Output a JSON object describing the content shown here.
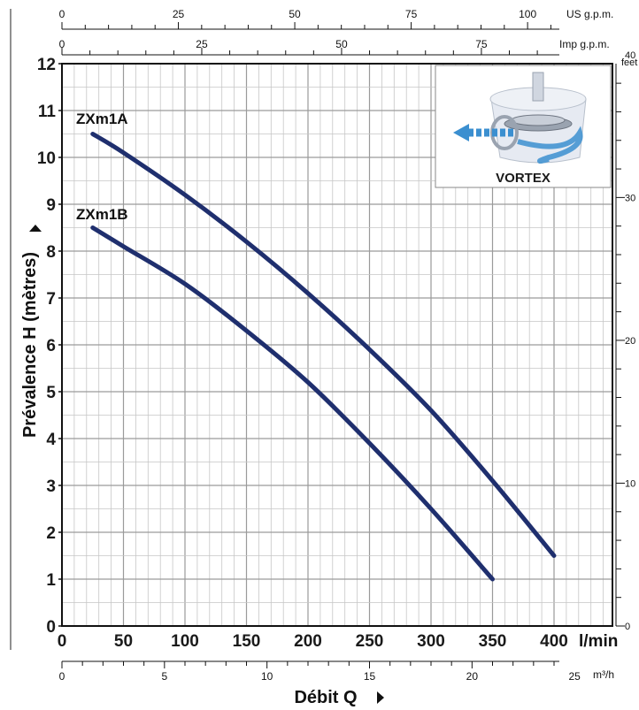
{
  "chart_data": {
    "type": "line",
    "ylabel": "Prévalence H (mètres)",
    "xlabel": "Débit Q",
    "x_unit": "l/min",
    "xlim": [
      0,
      450
    ],
    "ylim": [
      0,
      12
    ],
    "x_ticks": [
      "0",
      "50",
      "100",
      "150",
      "200",
      "250",
      "300",
      "350",
      "400"
    ],
    "y_ticks": [
      "0",
      "1",
      "2",
      "3",
      "4",
      "5",
      "6",
      "7",
      "8",
      "9",
      "10",
      "11",
      "12"
    ],
    "grid": true,
    "series": [
      {
        "name": "ZXm1A",
        "color": "#1f2f6e",
        "x": [
          25,
          50,
          100,
          150,
          200,
          250,
          300,
          350,
          400
        ],
        "y": [
          10.5,
          10.1,
          9.2,
          8.2,
          7.1,
          5.9,
          4.6,
          3.1,
          1.5
        ]
      },
      {
        "name": "ZXm1B",
        "color": "#1f2f6e",
        "x": [
          25,
          50,
          100,
          150,
          200,
          250,
          300,
          350
        ],
        "y": [
          8.5,
          8.1,
          7.3,
          6.3,
          5.2,
          3.9,
          2.5,
          1.0
        ]
      }
    ],
    "secondary_axes": {
      "us_gpm": {
        "label": "US g.p.m.",
        "ticks": [
          "0",
          "25",
          "50",
          "75",
          "100"
        ],
        "values": [
          0,
          25,
          50,
          75,
          100
        ],
        "lpm_per_unit": 3.785
      },
      "imp_gpm": {
        "label": "Imp g.p.m.",
        "ticks": [
          "0",
          "25",
          "50",
          "75"
        ],
        "values": [
          0,
          25,
          50,
          75
        ],
        "lpm_per_unit": 4.546
      },
      "m3h": {
        "label": "m³/h",
        "ticks": [
          "0",
          "5",
          "10",
          "15",
          "20",
          "25"
        ],
        "values": [
          0,
          5,
          10,
          15,
          20,
          25
        ],
        "lpm_per_unit": 16.667
      },
      "feet": {
        "label": "feet",
        "ticks": [
          "0",
          "10",
          "20",
          "30",
          "40"
        ],
        "values": [
          0,
          10,
          20,
          30,
          40
        ],
        "m_per_unit": 0.3048
      }
    },
    "inset": {
      "label": "VORTEX"
    }
  }
}
